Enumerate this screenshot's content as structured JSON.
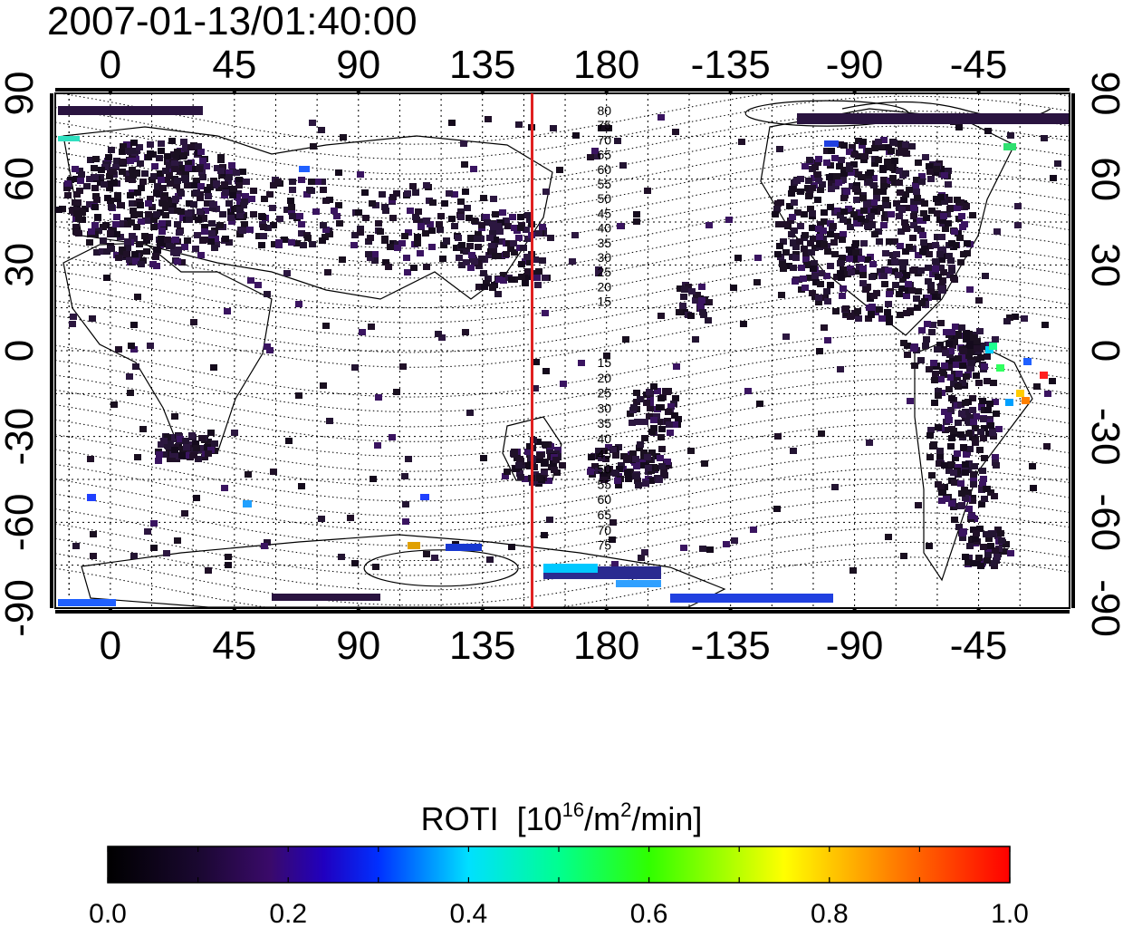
{
  "timestamp": "2007-01-13/01:40:00",
  "map": {
    "lon_ticks_labels": [
      "0",
      "45",
      "90",
      "135",
      "180",
      "-135",
      "-90",
      "-45"
    ],
    "lat_ticks_labels": [
      "90",
      "60",
      "30",
      "0",
      "-30",
      "-60",
      "-90"
    ],
    "terminator_longitude": 153,
    "terminator_color": "#e02020",
    "contour_labels_north": [
      "80",
      "75",
      "70",
      "65",
      "60",
      "55",
      "50",
      "45",
      "40",
      "35",
      "30",
      "25",
      "20",
      "15"
    ],
    "contour_labels_south": [
      "15",
      "20",
      "25",
      "30",
      "35",
      "40",
      "45",
      "50",
      "55",
      "60",
      "65",
      "70",
      "75"
    ]
  },
  "colorbar": {
    "title_prefix": "ROTI",
    "unit_open": "[10",
    "unit_exp1": "16",
    "unit_mid": "/m",
    "unit_exp2": "2",
    "unit_close": "/min]",
    "tick_labels": [
      "0.0",
      "0.2",
      "0.4",
      "0.6",
      "0.8",
      "1.0"
    ],
    "range": [
      0.0,
      1.0
    ],
    "colors": [
      "#000000",
      "#1a0830",
      "#3a0a6a",
      "#0000ff",
      "#00a0ff",
      "#00ffe0",
      "#00ff40",
      "#80ff00",
      "#ffff00",
      "#ff8000",
      "#ff0000"
    ]
  }
}
